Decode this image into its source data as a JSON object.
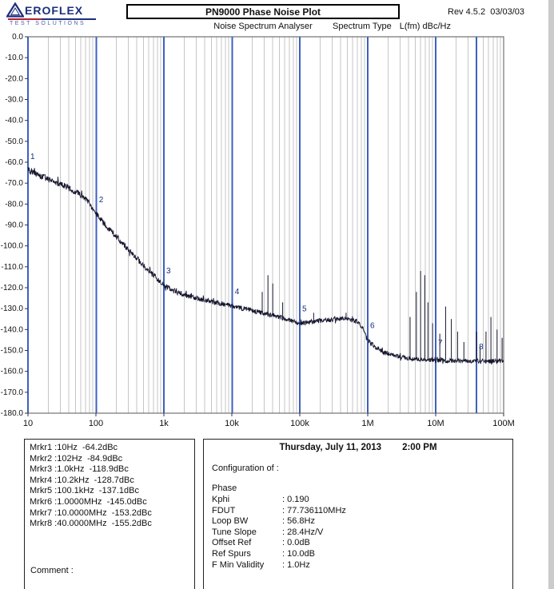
{
  "header": {
    "logo": {
      "brand": "EROFLEX",
      "tagline": "TEST SOLUTIONS"
    },
    "title": "PN9000 Phase Noise Plot",
    "rev": "Rev 4.5.2  03/03/03",
    "subtitle": "Noise Spectrum Analyser",
    "spectrum_type_label": "Spectrum Type",
    "spectrum_type_value": "L(fm) dBc/Hz"
  },
  "chart_data": {
    "type": "line",
    "title": "PN9000 Phase Noise Plot",
    "x_scale": "log",
    "xlim": [
      10,
      100000000
    ],
    "ylim": [
      -180,
      0
    ],
    "x_tick_values": [
      10,
      100,
      1000,
      10000,
      100000,
      1000000,
      10000000,
      100000000
    ],
    "x_tick_labels": [
      "10",
      "100",
      "1k",
      "10k",
      "100k",
      "1M",
      "10M",
      "100M"
    ],
    "y_tick_values": [
      0,
      -10,
      -20,
      -30,
      -40,
      -50,
      -60,
      -70,
      -80,
      -90,
      -100,
      -110,
      -120,
      -130,
      -140,
      -150,
      -160,
      -170,
      -180
    ],
    "y_tick_labels": [
      "0.0",
      "-10.0",
      "-20.0",
      "-30.0",
      "-40.0",
      "-50.0",
      "-60.0",
      "-70.0",
      "-80.0",
      "-90.0",
      "-100.0",
      "-110.0",
      "-120.0",
      "-130.0",
      "-140.0",
      "-150.0",
      "-160.0",
      "-170.0",
      "-180.0"
    ],
    "grid": "vertical-log-minor",
    "legend": "none",
    "trace": {
      "name": "phase noise L(fm)",
      "anchors_hz": [
        10,
        14,
        20,
        28,
        40,
        55,
        70,
        85,
        102,
        130,
        180,
        250,
        350,
        500,
        700,
        1000,
        1400,
        2000,
        3000,
        5000,
        7000,
        10200,
        15000,
        22000,
        33000,
        50000,
        70000,
        100100,
        150000,
        220000,
        330000,
        500000,
        700000,
        850000,
        1000000,
        1300000,
        1700000,
        2500000,
        4000000,
        7000000,
        10000000,
        20000000,
        40000000,
        70000000,
        100000000
      ],
      "anchors_dbc": [
        -63.5,
        -66,
        -68,
        -70,
        -72.5,
        -75,
        -77.5,
        -81,
        -84.9,
        -89,
        -94,
        -99,
        -104,
        -109.5,
        -114,
        -118.9,
        -121.5,
        -123.3,
        -125,
        -126.6,
        -127.6,
        -128.7,
        -130,
        -131.3,
        -132.6,
        -134,
        -135.5,
        -137.1,
        -136.3,
        -135.6,
        -135.2,
        -134.8,
        -136,
        -139.5,
        -145,
        -148.5,
        -150.8,
        -152.5,
        -153.8,
        -154.5,
        -154.7,
        -155,
        -155.2,
        -155.1,
        -155
      ],
      "noise_anchors_hz": [
        10,
        100,
        1000,
        20000,
        100000,
        1000000,
        100000000
      ],
      "noise_anchors_db": [
        1.6,
        1.5,
        1.3,
        1.1,
        1.1,
        1.0,
        1.1
      ]
    },
    "spurs": [
      [
        28000,
        -122
      ],
      [
        34000,
        -114
      ],
      [
        40000,
        -118
      ],
      [
        56000,
        -127
      ],
      [
        160000,
        -132
      ],
      [
        480000,
        -132
      ],
      [
        4200000,
        -134
      ],
      [
        5200000,
        -122
      ],
      [
        6000000,
        -112
      ],
      [
        6900000,
        -114
      ],
      [
        7700000,
        -127
      ],
      [
        9000000,
        -137
      ],
      [
        11500000,
        -142
      ],
      [
        14000000,
        -129
      ],
      [
        17000000,
        -135
      ],
      [
        21000000,
        -141
      ],
      [
        26000000,
        -146
      ],
      [
        40000000,
        -141
      ],
      [
        45000000,
        -148
      ],
      [
        55000000,
        -141
      ],
      [
        65000000,
        -134
      ],
      [
        80000000,
        -140
      ],
      [
        95000000,
        -144
      ]
    ],
    "markers": [
      {
        "n": "1",
        "hz": 10,
        "dbc": -64.2
      },
      {
        "n": "2",
        "hz": 102,
        "dbc": -84.9
      },
      {
        "n": "3",
        "hz": 1000,
        "dbc": -118.9
      },
      {
        "n": "4",
        "hz": 10200,
        "dbc": -128.7
      },
      {
        "n": "5",
        "hz": 100100,
        "dbc": -137.1
      },
      {
        "n": "6",
        "hz": 1000000,
        "dbc": -145.0
      },
      {
        "n": "7",
        "hz": 10000000,
        "dbc": -153.2
      },
      {
        "n": "8",
        "hz": 40000000,
        "dbc": -155.2
      }
    ],
    "colors": {
      "trace": "#15152e",
      "marker_line": "#3f5fc0",
      "marker_label": "#16307e",
      "grid_minor": "#c6c6c6",
      "grid_major": "#9a9a9a",
      "frame": "#555555",
      "axis_text": "#111111"
    }
  },
  "marker_panel": {
    "rows": [
      "Mrkr1 :10Hz  -64.2dBc",
      "Mrkr2 :102Hz  -84.9dBc",
      "Mrkr3 :1.0kHz  -118.9dBc",
      "Mrkr4 :10.2kHz  -128.7dBc",
      "Mrkr5 :100.1kHz  -137.1dBc",
      "Mrkr6 :1.0000MHz  -145.0dBc",
      "Mrkr7 :10.0000MHz  -153.2dBc",
      "Mrkr8 :40.0000MHz  -155.2dBc"
    ],
    "comment_label": "Comment :"
  },
  "info_panel": {
    "date": "Thursday, July 11, 2013",
    "time": "2:00 PM",
    "config_title": "Configuration of :",
    "config_subtitle": "Phase",
    "separator": ": ",
    "rows": [
      {
        "label": "Kphi",
        "value": "0.190"
      },
      {
        "label": "FDUT",
        "value": "77.736110MHz"
      },
      {
        "label": "Loop BW",
        "value": "56.8Hz"
      },
      {
        "label": "Tune Slope",
        "value": "28.4Hz/V"
      },
      {
        "label": "Offset Ref",
        "value": "0.0dB"
      },
      {
        "label": "Ref Spurs",
        "value": "10.0dB"
      },
      {
        "label": "F Min Validity",
        "value": "1.0Hz"
      }
    ]
  }
}
